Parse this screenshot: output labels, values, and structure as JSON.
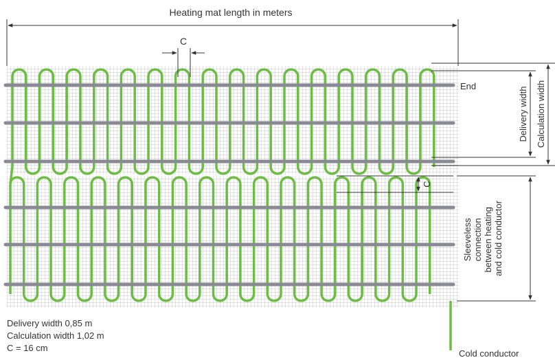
{
  "labels": {
    "length": "Heating mat length in meters",
    "spacing_top": "C",
    "spacing_side": "C",
    "end": "End",
    "delivery_width": "Delivery width",
    "calculation_width": "Calculation width",
    "sleeveless": [
      "Sleeveless",
      "connection",
      "between heating",
      "and cold conductor"
    ],
    "cold_conductor": "Cold conductor"
  },
  "notes": {
    "delivery_width": "Delivery width 0,85 m",
    "calculation_width": "Calculation width 1,02 m",
    "c_value": "C = 16 cm"
  },
  "colors": {
    "heating_cable": "#6dbd45",
    "support_rod": "#8a8a95",
    "mesh": "#b5b5b5",
    "dimension_line": "#333333"
  }
}
